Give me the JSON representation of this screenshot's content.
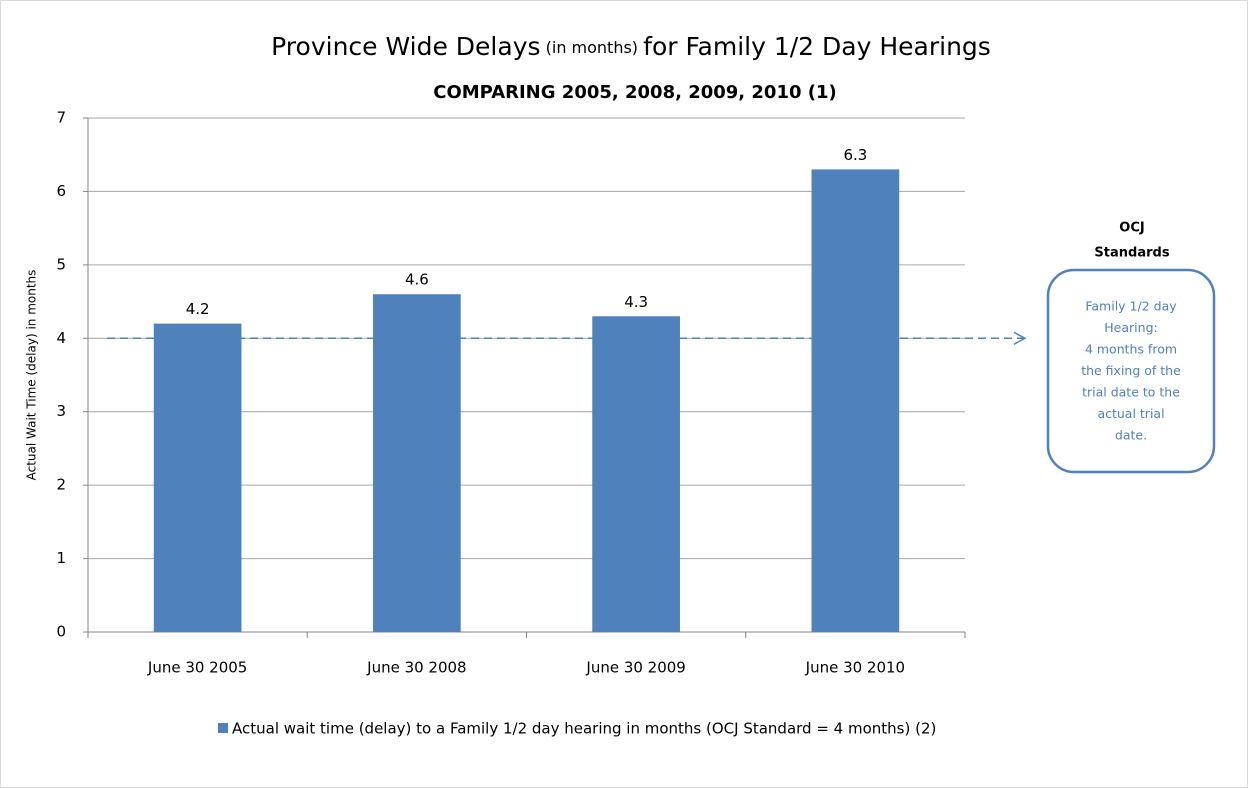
{
  "chart_data": {
    "type": "bar",
    "title": [
      "Province Wide Delays",
      "(in months)",
      "for Family 1/2 Day Hearings"
    ],
    "subtitle": "COMPARING 2005, 2008, 2009, 2010 (1)",
    "y_label": "Actual Wait Time (delay) in months",
    "categories": [
      "June 30 2005",
      "June 30 2008",
      "June 30 2009",
      "June 30 2010"
    ],
    "series": [
      {
        "name": "Actual wait time (delay) to a Family 1/2 day hearing in months (OCJ Standard = 4 months)  (2)",
        "color": "#4f81bd",
        "values": [
          4.2,
          4.6,
          4.3,
          6.3
        ]
      }
    ],
    "ylim": [
      0,
      7
    ],
    "yticks": [
      0,
      1,
      2,
      3,
      4,
      5,
      6,
      7
    ],
    "grid": true,
    "legend": "bottom",
    "reference_line": 4,
    "annotation_heading": [
      "OCJ",
      "Standards"
    ],
    "annotation": [
      "Family 1/2 day",
      "Hearing:",
      "4 months from",
      "the fixing of the",
      "trial date to the",
      "actual trial",
      "date."
    ]
  }
}
